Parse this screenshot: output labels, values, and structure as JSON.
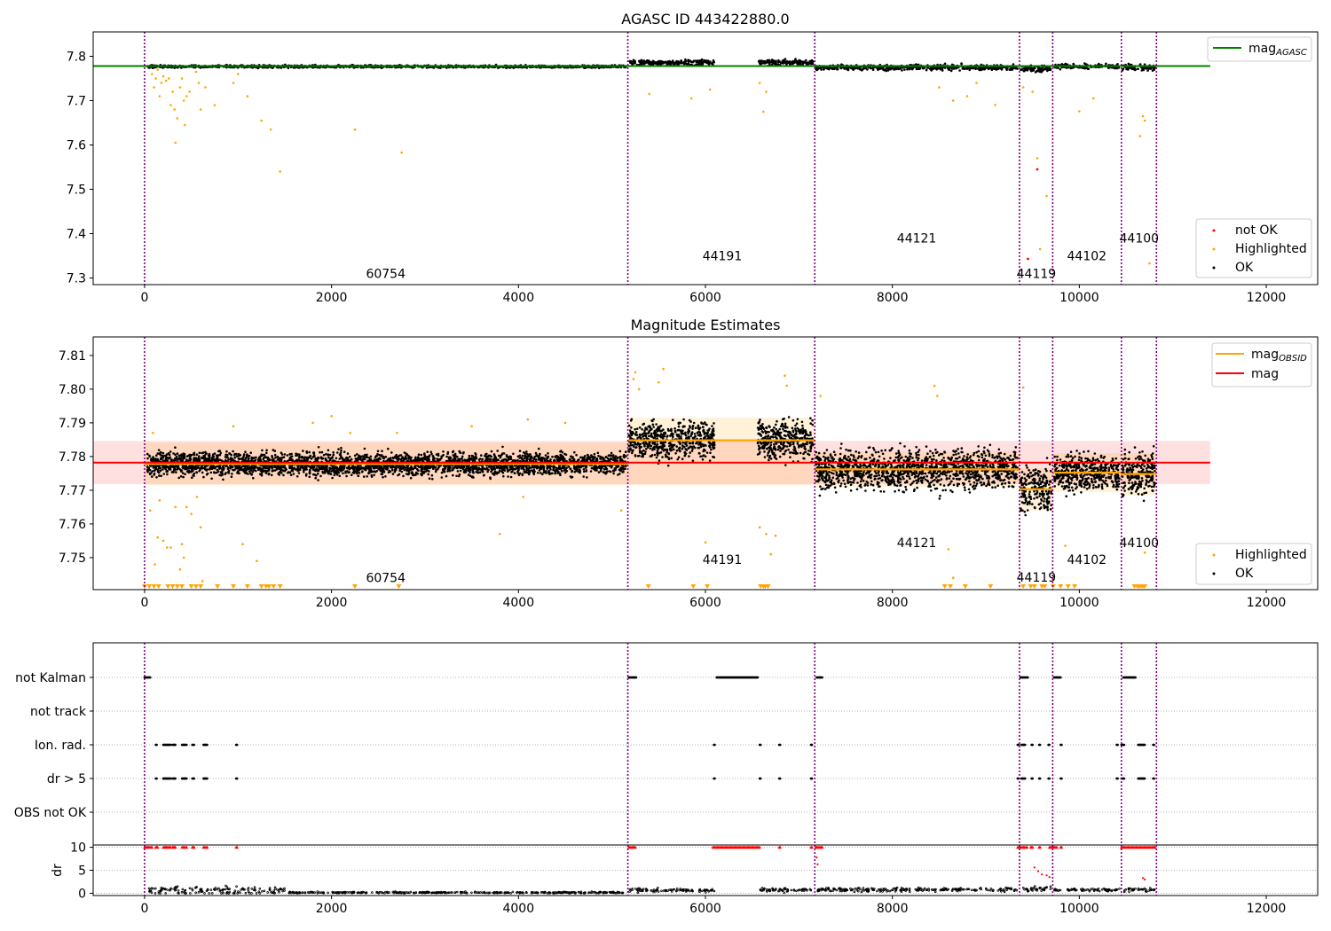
{
  "chart_data": [
    {
      "type": "scatter",
      "title": "AGASC ID 443422880.0",
      "xlim": [
        -550,
        12550
      ],
      "ylim": [
        7.285,
        7.855
      ],
      "x_ticks": [
        0,
        2000,
        4000,
        6000,
        8000,
        10000,
        12000
      ],
      "y_ticks": [
        7.3,
        7.4,
        7.5,
        7.6,
        7.7,
        7.8
      ],
      "obsid_boundaries": [
        0,
        5170,
        7170,
        9360,
        9715,
        10450,
        10825
      ],
      "obsid_labels": [
        {
          "text": "60754",
          "x": 2580,
          "y": 7.31
        },
        {
          "text": "44191",
          "x": 6180,
          "y": 7.35
        },
        {
          "text": "44121",
          "x": 8260,
          "y": 7.39
        },
        {
          "text": "44119",
          "x": 9540,
          "y": 7.31
        },
        {
          "text": "44102",
          "x": 10080,
          "y": 7.35
        },
        {
          "text": "44100",
          "x": 10640,
          "y": 7.39
        }
      ],
      "reference_line": {
        "name": "mag_AGASC",
        "y": 7.778,
        "x_range": [
          -550,
          11400
        ],
        "color": "#008000"
      },
      "ok_segments": [
        {
          "x0": 30,
          "x1": 5150,
          "mean": 7.777,
          "spread": 0.006
        },
        {
          "x0": 5180,
          "x1": 6100,
          "mean": 7.786,
          "spread": 0.012
        },
        {
          "x0": 6560,
          "x1": 7150,
          "mean": 7.786,
          "spread": 0.012
        },
        {
          "x0": 7180,
          "x1": 9340,
          "mean": 7.775,
          "spread": 0.013
        },
        {
          "x0": 9370,
          "x1": 9700,
          "mean": 7.772,
          "spread": 0.015
        },
        {
          "x0": 9730,
          "x1": 10430,
          "mean": 7.777,
          "spread": 0.012
        },
        {
          "x0": 10460,
          "x1": 10810,
          "mean": 7.775,
          "spread": 0.014
        }
      ],
      "highlighted_points": [
        [
          80,
          7.76
        ],
        [
          100,
          7.73
        ],
        [
          120,
          7.75
        ],
        [
          140,
          7.77
        ],
        [
          160,
          7.71
        ],
        [
          180,
          7.74
        ],
        [
          200,
          7.755
        ],
        [
          230,
          7.745
        ],
        [
          260,
          7.75
        ],
        [
          280,
          7.69
        ],
        [
          300,
          7.72
        ],
        [
          320,
          7.68
        ],
        [
          330,
          7.605
        ],
        [
          350,
          7.66
        ],
        [
          380,
          7.73
        ],
        [
          400,
          7.75
        ],
        [
          420,
          7.7
        ],
        [
          430,
          7.645
        ],
        [
          450,
          7.71
        ],
        [
          480,
          7.72
        ],
        [
          550,
          7.765
        ],
        [
          580,
          7.74
        ],
        [
          600,
          7.68
        ],
        [
          650,
          7.73
        ],
        [
          750,
          7.69
        ],
        [
          950,
          7.74
        ],
        [
          1000,
          7.76
        ],
        [
          1100,
          7.71
        ],
        [
          1250,
          7.655
        ],
        [
          1350,
          7.635
        ],
        [
          1450,
          7.54
        ],
        [
          2250,
          7.635
        ],
        [
          2750,
          7.583
        ],
        [
          5400,
          7.715
        ],
        [
          5850,
          7.705
        ],
        [
          6050,
          7.725
        ],
        [
          6580,
          7.74
        ],
        [
          6620,
          7.675
        ],
        [
          6650,
          7.72
        ],
        [
          8500,
          7.73
        ],
        [
          8650,
          7.7
        ],
        [
          8800,
          7.71
        ],
        [
          8900,
          7.74
        ],
        [
          9100,
          7.69
        ],
        [
          9400,
          7.73
        ],
        [
          9500,
          7.72
        ],
        [
          9550,
          7.57
        ],
        [
          9580,
          7.365
        ],
        [
          9650,
          7.485
        ],
        [
          10000,
          7.676
        ],
        [
          10150,
          7.705
        ],
        [
          10650,
          7.62
        ],
        [
          10680,
          7.665
        ],
        [
          10700,
          7.655
        ],
        [
          10750,
          7.333
        ]
      ],
      "not_ok_points": [
        [
          9450,
          7.343
        ],
        [
          9550,
          7.545
        ]
      ],
      "legend": [
        "not OK",
        "Highlighted",
        "OK"
      ]
    },
    {
      "type": "scatter",
      "title": "Magnitude Estimates",
      "xlim": [
        -550,
        12550
      ],
      "ylim": [
        7.7405,
        7.8155
      ],
      "x_ticks": [
        0,
        2000,
        4000,
        6000,
        8000,
        10000,
        12000
      ],
      "y_ticks": [
        7.75,
        7.76,
        7.77,
        7.78,
        7.79,
        7.8,
        7.81
      ],
      "obsid_labels": [
        {
          "text": "60754",
          "x": 2580,
          "y": 7.744
        },
        {
          "text": "44191",
          "x": 6180,
          "y": 7.7495
        },
        {
          "text": "44121",
          "x": 8260,
          "y": 7.7545
        },
        {
          "text": "44119",
          "x": 9540,
          "y": 7.7442
        },
        {
          "text": "44102",
          "x": 10080,
          "y": 7.7495
        },
        {
          "text": "44100",
          "x": 10640,
          "y": 7.7545
        }
      ],
      "mag_line": {
        "name": "mag",
        "y": 7.7782,
        "band": [
          7.7718,
          7.7846
        ],
        "x_range": [
          -550,
          11400
        ],
        "color": "#ff0000"
      },
      "obsid_mags": [
        {
          "x0": 0,
          "x1": 5170,
          "y": 7.7778,
          "band": [
            7.7715,
            7.7841
          ]
        },
        {
          "x0": 5170,
          "x1": 7170,
          "y": 7.7848,
          "band": [
            7.7715,
            7.7915
          ]
        },
        {
          "x0": 7170,
          "x1": 9360,
          "y": 7.7762,
          "band": [
            7.771,
            7.7815
          ]
        },
        {
          "x0": 9360,
          "x1": 9715,
          "y": 7.7703,
          "band": [
            7.764,
            7.7765
          ]
        },
        {
          "x0": 9715,
          "x1": 10450,
          "y": 7.7752,
          "band": [
            7.7695,
            7.781
          ]
        },
        {
          "x0": 10450,
          "x1": 10825,
          "y": 7.7748,
          "band": [
            7.7685,
            7.781
          ]
        }
      ],
      "ok_segments": [
        {
          "x0": 30,
          "x1": 5150,
          "mean": 7.7778,
          "spread": 0.0032
        },
        {
          "x0": 5180,
          "x1": 6100,
          "mean": 7.785,
          "spread": 0.0055
        },
        {
          "x0": 6560,
          "x1": 7150,
          "mean": 7.785,
          "spread": 0.0055
        },
        {
          "x0": 7180,
          "x1": 9340,
          "mean": 7.7762,
          "spread": 0.0055
        },
        {
          "x0": 9370,
          "x1": 9700,
          "mean": 7.7703,
          "spread": 0.0065
        },
        {
          "x0": 9730,
          "x1": 10430,
          "mean": 7.7752,
          "spread": 0.005
        },
        {
          "x0": 10460,
          "x1": 10810,
          "mean": 7.7748,
          "spread": 0.0055
        }
      ],
      "highlighted_points": [
        [
          60,
          7.764
        ],
        [
          90,
          7.787
        ],
        [
          110,
          7.748
        ],
        [
          140,
          7.756
        ],
        [
          160,
          7.767
        ],
        [
          200,
          7.755
        ],
        [
          240,
          7.753
        ],
        [
          280,
          7.753
        ],
        [
          330,
          7.765
        ],
        [
          380,
          7.7465
        ],
        [
          400,
          7.754
        ],
        [
          420,
          7.75
        ],
        [
          450,
          7.765
        ],
        [
          500,
          7.763
        ],
        [
          560,
          7.768
        ],
        [
          600,
          7.759
        ],
        [
          620,
          7.743
        ],
        [
          950,
          7.789
        ],
        [
          1050,
          7.754
        ],
        [
          1200,
          7.749
        ],
        [
          1800,
          7.79
        ],
        [
          2000,
          7.792
        ],
        [
          2200,
          7.787
        ],
        [
          2700,
          7.787
        ],
        [
          3500,
          7.789
        ],
        [
          3800,
          7.757
        ],
        [
          4050,
          7.768
        ],
        [
          4100,
          7.791
        ],
        [
          4500,
          7.79
        ],
        [
          5100,
          7.764
        ],
        [
          5230,
          7.803
        ],
        [
          5250,
          7.805
        ],
        [
          5290,
          7.8
        ],
        [
          5500,
          7.802
        ],
        [
          5550,
          7.806
        ],
        [
          6000,
          7.7545
        ],
        [
          6580,
          7.759
        ],
        [
          6650,
          7.757
        ],
        [
          6700,
          7.751
        ],
        [
          6750,
          7.7565
        ],
        [
          6850,
          7.804
        ],
        [
          6870,
          7.801
        ],
        [
          7230,
          7.798
        ],
        [
          8450,
          7.801
        ],
        [
          8480,
          7.798
        ],
        [
          8600,
          7.7525
        ],
        [
          8650,
          7.744
        ],
        [
          9400,
          7.8005
        ],
        [
          9850,
          7.7535
        ],
        [
          10700,
          7.7515
        ]
      ],
      "limit_markers_x": [
        0,
        50,
        100,
        150,
        250,
        300,
        350,
        400,
        500,
        550,
        600,
        780,
        950,
        1100,
        1250,
        1300,
        1330,
        1380,
        1450,
        2250,
        2720,
        5390,
        5870,
        6020,
        6590,
        6620,
        6640,
        6670,
        8560,
        8620,
        8780,
        9050,
        9400,
        9480,
        9520,
        9600,
        9630,
        9720,
        9800,
        9880,
        9950,
        10590,
        10620,
        10640,
        10660,
        10680,
        10700
      ],
      "legend": [
        "Highlighted",
        "OK"
      ]
    },
    {
      "type": "scatter",
      "title": "",
      "xlim": [
        -550,
        12550
      ],
      "x_ticks": [
        0,
        2000,
        4000,
        6000,
        8000,
        10000,
        12000
      ],
      "category_rows": [
        "not Kalman",
        "not track",
        "Ion. rad.",
        "dr > 5",
        "OBS not OK"
      ],
      "category_segments": {
        "not Kalman": [
          [
            0,
            60
          ],
          [
            5180,
            5260
          ],
          [
            6120,
            6560
          ],
          [
            7190,
            7250
          ],
          [
            9370,
            9450
          ],
          [
            9730,
            9800
          ],
          [
            10470,
            10600
          ]
        ],
        "not track": [],
        "Ion. rad.": [
          [
            120,
            130
          ],
          [
            200,
            280
          ],
          [
            300,
            330
          ],
          [
            400,
            450
          ],
          [
            510,
            530
          ],
          [
            630,
            670
          ],
          [
            980,
            990
          ],
          [
            6090,
            6100
          ],
          [
            6580,
            6590
          ],
          [
            6790,
            6800
          ],
          [
            7130,
            7140
          ],
          [
            9340,
            9350
          ],
          [
            9380,
            9420
          ],
          [
            9490,
            9500
          ],
          [
            9570,
            9580
          ],
          [
            9670,
            9680
          ],
          [
            9800,
            9810
          ],
          [
            10400,
            10410
          ],
          [
            10450,
            10480
          ],
          [
            10630,
            10700
          ],
          [
            10790,
            10800
          ]
        ],
        "dr > 5": [
          [
            120,
            130
          ],
          [
            200,
            280
          ],
          [
            300,
            330
          ],
          [
            400,
            450
          ],
          [
            510,
            530
          ],
          [
            630,
            670
          ],
          [
            980,
            990
          ],
          [
            6090,
            6100
          ],
          [
            6580,
            6590
          ],
          [
            6790,
            6800
          ],
          [
            7130,
            7140
          ],
          [
            9340,
            9350
          ],
          [
            9380,
            9420
          ],
          [
            9490,
            9500
          ],
          [
            9570,
            9580
          ],
          [
            9670,
            9680
          ],
          [
            9800,
            9810
          ],
          [
            10400,
            10410
          ],
          [
            10450,
            10480
          ],
          [
            10630,
            10700
          ],
          [
            10790,
            10800
          ]
        ],
        "OBS not OK": []
      },
      "dr_ylim": [
        -0.5,
        10.5
      ],
      "dr_ticks": [
        0,
        5,
        10
      ],
      "dr_ylabel": "dr",
      "dr_capped": [
        [
          0,
          80
        ],
        [
          120,
          140
        ],
        [
          200,
          280
        ],
        [
          300,
          330
        ],
        [
          400,
          450
        ],
        [
          510,
          530
        ],
        [
          630,
          670
        ],
        [
          980,
          990
        ],
        [
          5180,
          5250
        ],
        [
          6080,
          6580
        ],
        [
          6790,
          6800
        ],
        [
          7130,
          7140
        ],
        [
          7180,
          7250
        ],
        [
          9340,
          9440
        ],
        [
          9480,
          9500
        ],
        [
          9570,
          9580
        ],
        [
          9680,
          9760
        ],
        [
          9800,
          9810
        ],
        [
          10450,
          10790
        ],
        [
          10800,
          10810
        ]
      ],
      "dr_red_points": [
        [
          7190,
          7.8
        ],
        [
          7200,
          6.3
        ],
        [
          9520,
          5.6
        ],
        [
          9560,
          4.8
        ],
        [
          9600,
          4.1
        ],
        [
          9650,
          3.9
        ],
        [
          9680,
          3.5
        ],
        [
          10680,
          3.3
        ],
        [
          10700,
          3.0
        ]
      ],
      "dr_segments": [
        {
          "x0": 30,
          "x1": 1500,
          "mean": 0.6,
          "spread": 0.9
        },
        {
          "x0": 1500,
          "x1": 5150,
          "mean": 0.15,
          "spread": 0.15
        },
        {
          "x0": 5180,
          "x1": 6100,
          "mean": 0.7,
          "spread": 0.4
        },
        {
          "x0": 6560,
          "x1": 7150,
          "mean": 0.7,
          "spread": 0.4
        },
        {
          "x0": 7180,
          "x1": 9340,
          "mean": 0.8,
          "spread": 0.4
        },
        {
          "x0": 9370,
          "x1": 9700,
          "mean": 1.0,
          "spread": 0.5
        },
        {
          "x0": 9730,
          "x1": 10430,
          "mean": 0.7,
          "spread": 0.35
        },
        {
          "x0": 10460,
          "x1": 10810,
          "mean": 0.7,
          "spread": 0.4
        }
      ]
    }
  ],
  "colors": {
    "ok": "#000000",
    "highlighted": "#ffa500",
    "not_ok": "#ff0000",
    "boundary": "#800080",
    "agasc_line": "#008000",
    "mag": "#ff0000",
    "mag_obsid": "#ffa500"
  }
}
